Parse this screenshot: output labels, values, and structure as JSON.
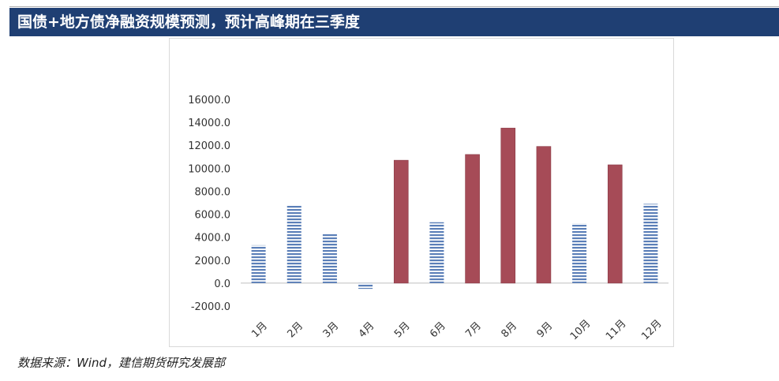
{
  "header": {
    "title": "国债+地方债净融资规模预测，预计高峰期在三季度"
  },
  "footer": {
    "source": "数据来源：Wind，建信期货研究发展部"
  },
  "colors": {
    "title_bg": "#1f3f73",
    "bar_blue": "#5b7fb8",
    "bar_red": "#a64b57"
  },
  "chart_data": {
    "type": "bar",
    "categories": [
      "1月",
      "2月",
      "3月",
      "4月",
      "5月",
      "6月",
      "7月",
      "8月",
      "9月",
      "10月",
      "11月",
      "12月"
    ],
    "values": [
      3300,
      6800,
      4300,
      -500,
      10700,
      5300,
      11200,
      13500,
      11900,
      5200,
      10300,
      6900
    ],
    "bar_styles": [
      "striped-blue",
      "striped-blue",
      "striped-blue",
      "striped-blue",
      "solid-red",
      "striped-blue",
      "solid-red",
      "solid-red",
      "solid-red",
      "striped-blue",
      "solid-red",
      "striped-blue"
    ],
    "yticks": [
      "-2000.0",
      "0.0",
      "2000.0",
      "4000.0",
      "6000.0",
      "8000.0",
      "10000.0",
      "12000.0",
      "14000.0",
      "16000.0"
    ],
    "ylim": [
      -2000,
      16000
    ],
    "title": "",
    "xlabel": "",
    "ylabel": "",
    "grid": false,
    "legend": "none"
  }
}
